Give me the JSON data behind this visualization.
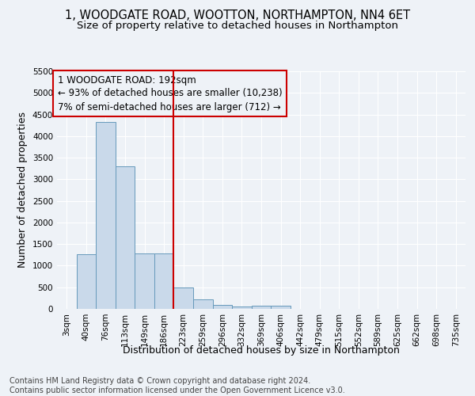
{
  "title_line1": "1, WOODGATE ROAD, WOOTTON, NORTHAMPTON, NN4 6ET",
  "title_line2": "Size of property relative to detached houses in Northampton",
  "xlabel": "Distribution of detached houses by size in Northampton",
  "ylabel": "Number of detached properties",
  "footnote": "Contains HM Land Registry data © Crown copyright and database right 2024.\nContains public sector information licensed under the Open Government Licence v3.0.",
  "bar_labels": [
    "3sqm",
    "40sqm",
    "76sqm",
    "113sqm",
    "149sqm",
    "186sqm",
    "223sqm",
    "259sqm",
    "296sqm",
    "332sqm",
    "369sqm",
    "406sqm",
    "442sqm",
    "479sqm",
    "515sqm",
    "552sqm",
    "589sqm",
    "625sqm",
    "662sqm",
    "698sqm",
    "735sqm"
  ],
  "bar_values": [
    0,
    1260,
    4330,
    3300,
    1280,
    1280,
    490,
    220,
    90,
    55,
    65,
    65,
    0,
    0,
    0,
    0,
    0,
    0,
    0,
    0,
    0
  ],
  "bar_color": "#c9d9ea",
  "bar_edge_color": "#6699bb",
  "vline_x": 5.5,
  "vline_color": "#cc0000",
  "annotation_line1": "1 WOODGATE ROAD: 192sqm",
  "annotation_line2": "← 93% of detached houses are smaller (10,238)",
  "annotation_line3": "7% of semi-detached houses are larger (712) →",
  "annotation_box_color": "#cc0000",
  "ylim": [
    0,
    5500
  ],
  "yticks": [
    0,
    500,
    1000,
    1500,
    2000,
    2500,
    3000,
    3500,
    4000,
    4500,
    5000,
    5500
  ],
  "background_color": "#eef2f7",
  "grid_color": "#ffffff",
  "title_fontsize": 10.5,
  "subtitle_fontsize": 9.5,
  "axis_label_fontsize": 9,
  "tick_fontsize": 7.5,
  "annotation_fontsize": 8.5,
  "footnote_fontsize": 7
}
